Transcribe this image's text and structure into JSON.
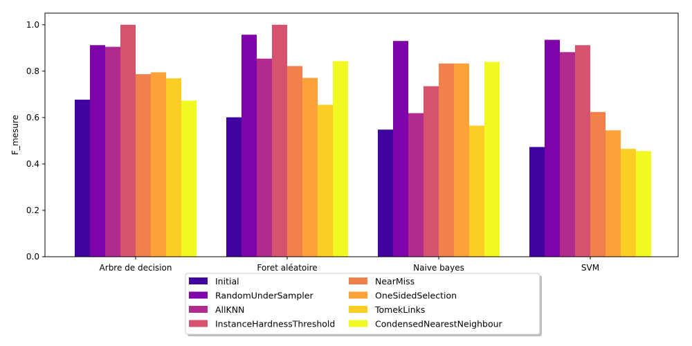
{
  "chart_data": {
    "type": "bar",
    "title": "",
    "xlabel": "",
    "ylabel": "F_mesure",
    "ylim": [
      0,
      1.05
    ],
    "yticks": [
      "0.0",
      "0.2",
      "0.4",
      "0.6",
      "0.8",
      "1.0"
    ],
    "categories": [
      "Arbre de decision",
      "Foret aléatoire",
      "Naive bayes",
      "SVM"
    ],
    "grid": false,
    "legend_position": "bottom-center",
    "series": [
      {
        "name": "Initial",
        "color": "#3f04a0",
        "values": [
          0.677,
          0.601,
          0.548,
          0.473
        ]
      },
      {
        "name": "RandomUnderSampler",
        "color": "#7e03a8",
        "values": [
          0.912,
          0.957,
          0.93,
          0.935
        ]
      },
      {
        "name": "AllKNN",
        "color": "#b12a90",
        "values": [
          0.905,
          0.854,
          0.619,
          0.882
        ]
      },
      {
        "name": "InstanceHardnessThreshold",
        "color": "#d5536f",
        "values": [
          1.0,
          1.0,
          0.735,
          0.912
        ]
      },
      {
        "name": "NearMiss",
        "color": "#f0804c",
        "values": [
          0.787,
          0.822,
          0.833,
          0.624
        ]
      },
      {
        "name": "OneSidedSelection",
        "color": "#fba238",
        "values": [
          0.795,
          0.771,
          0.833,
          0.545
        ]
      },
      {
        "name": "TomekLinks",
        "color": "#fccd25",
        "values": [
          0.769,
          0.655,
          0.565,
          0.465
        ]
      },
      {
        "name": "CondensedNearestNeighbour",
        "color": "#f0f921",
        "values": [
          0.673,
          0.843,
          0.84,
          0.455
        ]
      }
    ]
  }
}
